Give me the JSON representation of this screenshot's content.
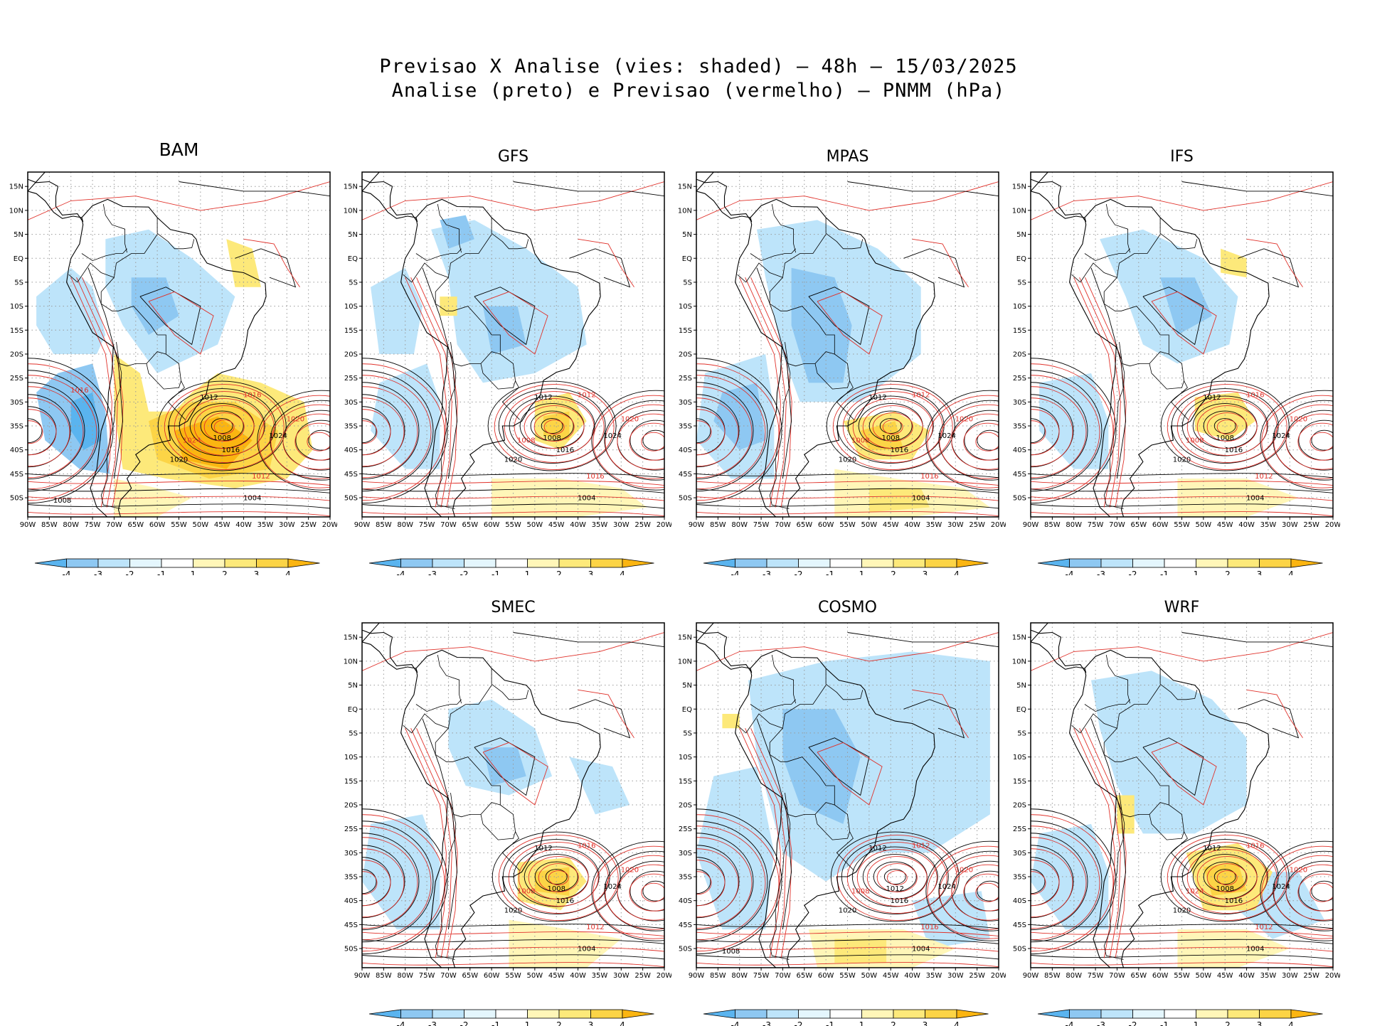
{
  "title_line1": "Previsao X Analise (vies: shaded) — 48h — 15/03/2025",
  "title_line2": "Analise (preto) e Previsao (vermelho) — PNMM (hPa)",
  "colors": {
    "analysis_contour": "#000000",
    "forecast_contour": "#e0312a",
    "bias_scale": [
      "#5ab4ef",
      "#8ec8f2",
      "#bde4fa",
      "#e4f6fd",
      "#ffffff",
      "#fff6b8",
      "#fde97a",
      "#fcd446",
      "#fbb511"
    ]
  },
  "lat_labels": [
    "15N",
    "10N",
    "5N",
    "EQ",
    "5S",
    "10S",
    "15S",
    "20S",
    "25S",
    "30S",
    "35S",
    "40S",
    "45S",
    "50S"
  ],
  "lon_labels": [
    "90W",
    "85W",
    "80W",
    "75W",
    "70W",
    "65W",
    "60W",
    "55W",
    "50W",
    "45W",
    "40W",
    "35W",
    "30W",
    "25W",
    "20W"
  ],
  "colorbar_labels": [
    "-4",
    "-3",
    "-2",
    "-1",
    "1",
    "2",
    "3",
    "4"
  ],
  "panels": [
    {
      "name": "BAM",
      "low_label": "1008",
      "labels_black": [
        "1012",
        "1016",
        "1020",
        "1024",
        "1004",
        "1008"
      ],
      "labels_red": [
        "1016",
        "1012",
        "1020",
        "1024",
        "1016"
      ]
    },
    {
      "name": "GFS",
      "low_label": "1008",
      "labels_black": [
        "1012",
        "1016",
        "1020",
        "1024",
        "1004"
      ],
      "labels_red": [
        "1012",
        "1016",
        "1020",
        "1008"
      ]
    },
    {
      "name": "MPAS",
      "low_label": "1008",
      "labels_black": [
        "1012",
        "1016",
        "1020",
        "1024",
        "1004"
      ],
      "labels_red": [
        "1012",
        "1016",
        "1020",
        "1008"
      ]
    },
    {
      "name": "IFS",
      "low_label": "1008",
      "labels_black": [
        "1012",
        "1016",
        "1020",
        "1024",
        "1004"
      ],
      "labels_red": [
        "1016",
        "1012",
        "1020",
        "1008"
      ]
    },
    {
      "name": "SMEC",
      "low_label": "1008",
      "labels_black": [
        "1012",
        "1016",
        "1020",
        "1024",
        "1004"
      ],
      "labels_red": [
        "1016",
        "1012",
        "1020",
        "1008"
      ]
    },
    {
      "name": "COSMO",
      "low_label": "1012",
      "labels_black": [
        "1012",
        "1016",
        "1020",
        "1024",
        "1004",
        "1008"
      ],
      "labels_red": [
        "1012",
        "1016",
        "1020",
        "1008"
      ]
    },
    {
      "name": "WRF",
      "low_label": "1008",
      "labels_black": [
        "1012",
        "1016",
        "1020",
        "1024",
        "1004"
      ],
      "labels_red": [
        "1016",
        "1012",
        "1020",
        "1024"
      ]
    }
  ]
}
